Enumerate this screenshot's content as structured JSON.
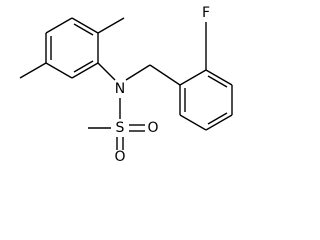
{
  "atoms": {
    "nitrogen": "N",
    "sulfur": "S",
    "oxygen_left": "O",
    "oxygen_bottom": "O",
    "fluorine": "F"
  }
}
